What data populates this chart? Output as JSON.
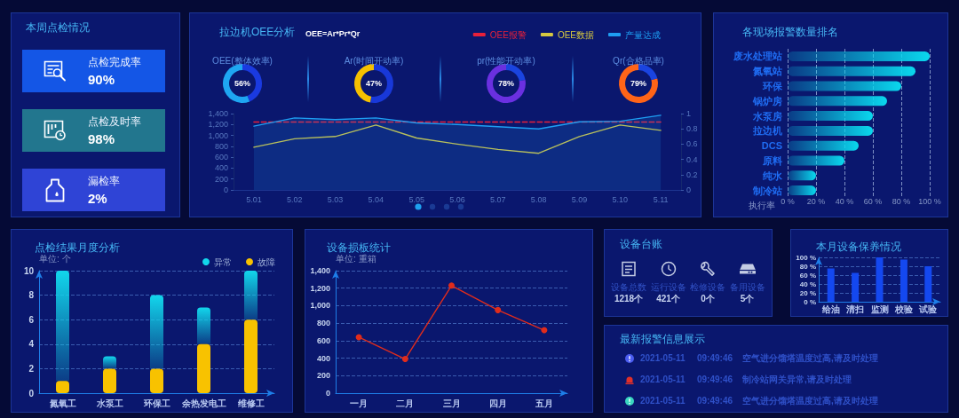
{
  "chart_data": [
    {
      "type": "other",
      "title": "本周点检情况",
      "annotations": [
        "点检完成率",
        "90%",
        "点检及时率",
        "98%",
        "漏检率",
        "2%"
      ]
    },
    {
      "type": "line",
      "title": "拉边机OEE分析",
      "subtitle": "OEE=Ar*Pr*Qr",
      "categories": [
        "5.01",
        "5.02",
        "5.03",
        "5.04",
        "5.05",
        "5.06",
        "5.07",
        "5.08",
        "5.09",
        "5.10",
        "5.11"
      ],
      "series": [
        {
          "name": "OEE报警",
          "color": "#e8203a",
          "values": [
            0.89,
            0.89,
            0.89,
            0.89,
            0.89,
            0.89,
            0.89,
            0.89,
            0.89,
            0.89,
            0.89
          ],
          "axis": "y2",
          "line_style": "dashed"
        },
        {
          "name": "OEE数据",
          "color": "#d6c840",
          "values": [
            0.56,
            0.67,
            0.7,
            0.85,
            0.68,
            0.6,
            0.53,
            0.48,
            0.7,
            0.85,
            0.78
          ],
          "axis": "y2"
        },
        {
          "name": "产量达成",
          "type": "area",
          "color": "#1e9ef2",
          "values": [
            1170,
            1320,
            1290,
            1320,
            1230,
            1200,
            1160,
            1120,
            1250,
            1260,
            1370
          ]
        }
      ],
      "ylim": [
        0,
        1400
      ],
      "yticks": [
        0,
        200,
        400,
        600,
        800,
        {
          "value": 1000,
          "label": "1,000"
        },
        {
          "value": 1200,
          "label": "1,200"
        },
        {
          "value": 1400,
          "label": "1,400"
        }
      ],
      "y2lim": [
        0,
        1
      ],
      "y2ticks": [
        0,
        0.2,
        0.4,
        0.6,
        0.8,
        1
      ],
      "legend": "top right"
    },
    {
      "type": "donut",
      "title": "OEE(整体效率)",
      "categories": [
        null,
        null
      ],
      "values": [
        44,
        56
      ],
      "colors": [
        "#1a3ae0",
        "#1ea6f2"
      ],
      "annotations": [
        "56%"
      ]
    },
    {
      "type": "donut",
      "title": "Ar(时间开动率)",
      "categories": [
        null,
        null
      ],
      "values": [
        53,
        47
      ],
      "colors": [
        "#1838d8",
        "#f5c000"
      ],
      "annotations": [
        "47%"
      ]
    },
    {
      "type": "donut",
      "title": "pr(性能开动率)",
      "categories": [
        null,
        null
      ],
      "values": [
        22,
        78
      ],
      "colors": [
        "#1a44e0",
        "#6a30e0"
      ],
      "annotations": [
        "78%"
      ]
    },
    {
      "type": "donut",
      "title": "Qr(合格品率)",
      "categories": [
        null,
        null
      ],
      "values": [
        21,
        79
      ],
      "colors": [
        "#1a44e0",
        "#ff6418"
      ],
      "annotations": [
        "79%"
      ]
    },
    {
      "type": "bar",
      "orientation": "horizontal",
      "title": "各现场报警数量排名",
      "xlabel": "执行率",
      "categories": [
        "废水处理站",
        "氮氧站",
        "环保",
        "锅炉房",
        "水泵房",
        "拉边机",
        "DCS",
        "原料",
        "纯水",
        "制冷站"
      ],
      "values": [
        100,
        90,
        80,
        70,
        60,
        60,
        50,
        40,
        20,
        20
      ],
      "color": "#0ad8ee",
      "xlim": [
        0,
        100
      ],
      "xticks": [
        {
          "value": 0,
          "label": "0 %"
        },
        {
          "value": 20,
          "label": "20 %"
        },
        {
          "value": 40,
          "label": "40 %"
        },
        {
          "value": 60,
          "label": "60 %"
        },
        {
          "value": 80,
          "label": "80 %"
        },
        {
          "value": 100,
          "label": "100 %"
        }
      ],
      "grid": "x"
    },
    {
      "type": "bar",
      "title": "点检结果月度分析",
      "ylabel": "单位: 个",
      "categories": [
        "氮氧工",
        "水泵工",
        "环保工",
        "余热发电工",
        "维修工"
      ],
      "stacked": true,
      "series": [
        {
          "name": "故障",
          "color": "#f8c200",
          "values": [
            1,
            2,
            2,
            4,
            6
          ]
        },
        {
          "name": "异常",
          "color": "#12d6ec",
          "values": [
            9,
            1,
            6,
            3,
            4
          ]
        }
      ],
      "ylim": [
        0,
        10
      ],
      "yticks": [
        0,
        2,
        4,
        6,
        8,
        10
      ],
      "grid": "y",
      "legend": "top right"
    },
    {
      "type": "line",
      "title": "设备损板统计",
      "ylabel": "单位: 重箱",
      "categories": [
        "一月",
        "二月",
        "三月",
        "四月",
        "五月"
      ],
      "values": [
        640,
        390,
        1230,
        950,
        720
      ],
      "color": "#e02c1c",
      "marker": "circle",
      "ylim": [
        0,
        1400
      ],
      "yticks": [
        0,
        200,
        400,
        600,
        800,
        {
          "value": 1000,
          "label": "1,000"
        },
        {
          "value": 1200,
          "label": "1,200"
        },
        {
          "value": 1400,
          "label": "1,400"
        }
      ],
      "grid": "y"
    },
    {
      "type": "other",
      "title": "设备台账",
      "annotations": [
        "设备总数",
        "1218个",
        "运行设备",
        "421个",
        "检修设备",
        "0个",
        "备用设备",
        "5个"
      ]
    },
    {
      "type": "bar",
      "title": "本月设备保养情况",
      "categories": [
        "给油",
        "清扫",
        "监测",
        "校验",
        "试验"
      ],
      "values": [
        75,
        65,
        100,
        95,
        80
      ],
      "color": "#1448f0",
      "ylim": [
        0,
        100
      ],
      "yticks": [
        {
          "value": 0,
          "label": "0 %"
        },
        {
          "value": 20,
          "label": "20 %"
        },
        {
          "value": 40,
          "label": "40 %"
        },
        {
          "value": 60,
          "label": "60 %"
        },
        {
          "value": 80,
          "label": "80 %"
        },
        {
          "value": 100,
          "label": "100 %"
        }
      ],
      "grid": "y"
    },
    {
      "type": "other",
      "title": "最新报警信息展示",
      "annotations": [
        "2021-05-11",
        "09:49:46",
        "空气进分馏塔温度过高,请及时处理",
        "2021-05-11",
        "09:49:46",
        "制冷站网关异常,请及时处理",
        "2021-05-11",
        "09:49:46",
        "空气进分馏塔温度过高,请及时处理"
      ]
    }
  ]
}
